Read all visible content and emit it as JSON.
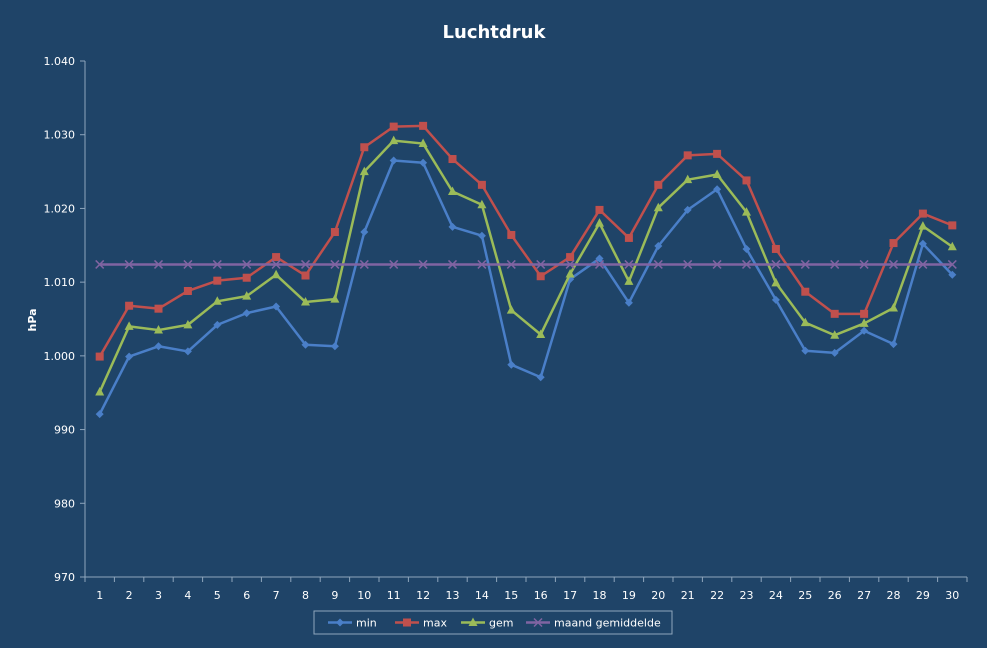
{
  "chart_data": {
    "type": "line",
    "title": "Luchtdruk",
    "ylabel": "hPa",
    "xlabel": "",
    "ylim": [
      970,
      1040
    ],
    "y_ticks": [
      970,
      980,
      990,
      1000,
      1010,
      1020,
      1030,
      1040
    ],
    "y_tick_labels": [
      "970",
      "980",
      "990",
      "1.000",
      "1.010",
      "1.020",
      "1.030",
      "1.040"
    ],
    "categories": [
      "1",
      "2",
      "3",
      "4",
      "5",
      "6",
      "7",
      "8",
      "9",
      "10",
      "11",
      "12",
      "13",
      "14",
      "15",
      "16",
      "17",
      "18",
      "19",
      "20",
      "21",
      "22",
      "23",
      "24",
      "25",
      "26",
      "27",
      "28",
      "29",
      "30"
    ],
    "grid": false,
    "legend_position": "bottom",
    "series": [
      {
        "name": "min",
        "color": "#4a7fc8",
        "marker": "diamond",
        "values": [
          992.1,
          999.9,
          1001.3,
          1000.6,
          1004.2,
          1005.8,
          1006.7,
          1001.5,
          1001.3,
          1016.8,
          1026.5,
          1026.2,
          1017.5,
          1016.3,
          998.8,
          997.1,
          1010.4,
          1013.2,
          1007.2,
          1014.9,
          1019.8,
          1022.6,
          1014.5,
          1007.6,
          1000.7,
          1000.4,
          1003.4,
          1001.6,
          1015.2,
          1011.0
        ]
      },
      {
        "name": "max",
        "color": "#c0504d",
        "marker": "square",
        "values": [
          999.9,
          1006.8,
          1006.4,
          1008.8,
          1010.2,
          1010.6,
          1013.4,
          1010.9,
          1016.8,
          1028.3,
          1031.1,
          1031.2,
          1026.7,
          1023.2,
          1016.4,
          1010.8,
          1013.4,
          1019.8,
          1016.0,
          1023.2,
          1027.2,
          1027.4,
          1023.8,
          1014.5,
          1008.7,
          1005.7,
          1005.7,
          1015.3,
          1019.3,
          1017.7
        ]
      },
      {
        "name": "gem",
        "color": "#9bbb59",
        "marker": "triangle",
        "values": [
          995.1,
          1004.0,
          1003.5,
          1004.2,
          1007.4,
          1008.1,
          1011.0,
          1007.3,
          1007.7,
          1025.0,
          1029.2,
          1028.8,
          1022.3,
          1020.5,
          1006.2,
          1002.9,
          1011.1,
          1018.0,
          1010.1,
          1020.1,
          1023.9,
          1024.6,
          1019.5,
          1009.9,
          1004.5,
          1002.8,
          1004.4,
          1006.5,
          1017.6,
          1014.8
        ]
      },
      {
        "name": "maand gemiddelde",
        "color": "#8064a2",
        "marker": "x",
        "values": [
          1012.4,
          1012.4,
          1012.4,
          1012.4,
          1012.4,
          1012.4,
          1012.4,
          1012.4,
          1012.4,
          1012.4,
          1012.4,
          1012.4,
          1012.4,
          1012.4,
          1012.4,
          1012.4,
          1012.4,
          1012.4,
          1012.4,
          1012.4,
          1012.4,
          1012.4,
          1012.4,
          1012.4,
          1012.4,
          1012.4,
          1012.4,
          1012.4,
          1012.4,
          1012.4
        ]
      }
    ]
  },
  "colors": {
    "background": "#1f4468",
    "text": "#ffffff",
    "axis": "#8fa6bd",
    "legend_background": "#1f4468",
    "legend_border": "#8fa6bd"
  }
}
